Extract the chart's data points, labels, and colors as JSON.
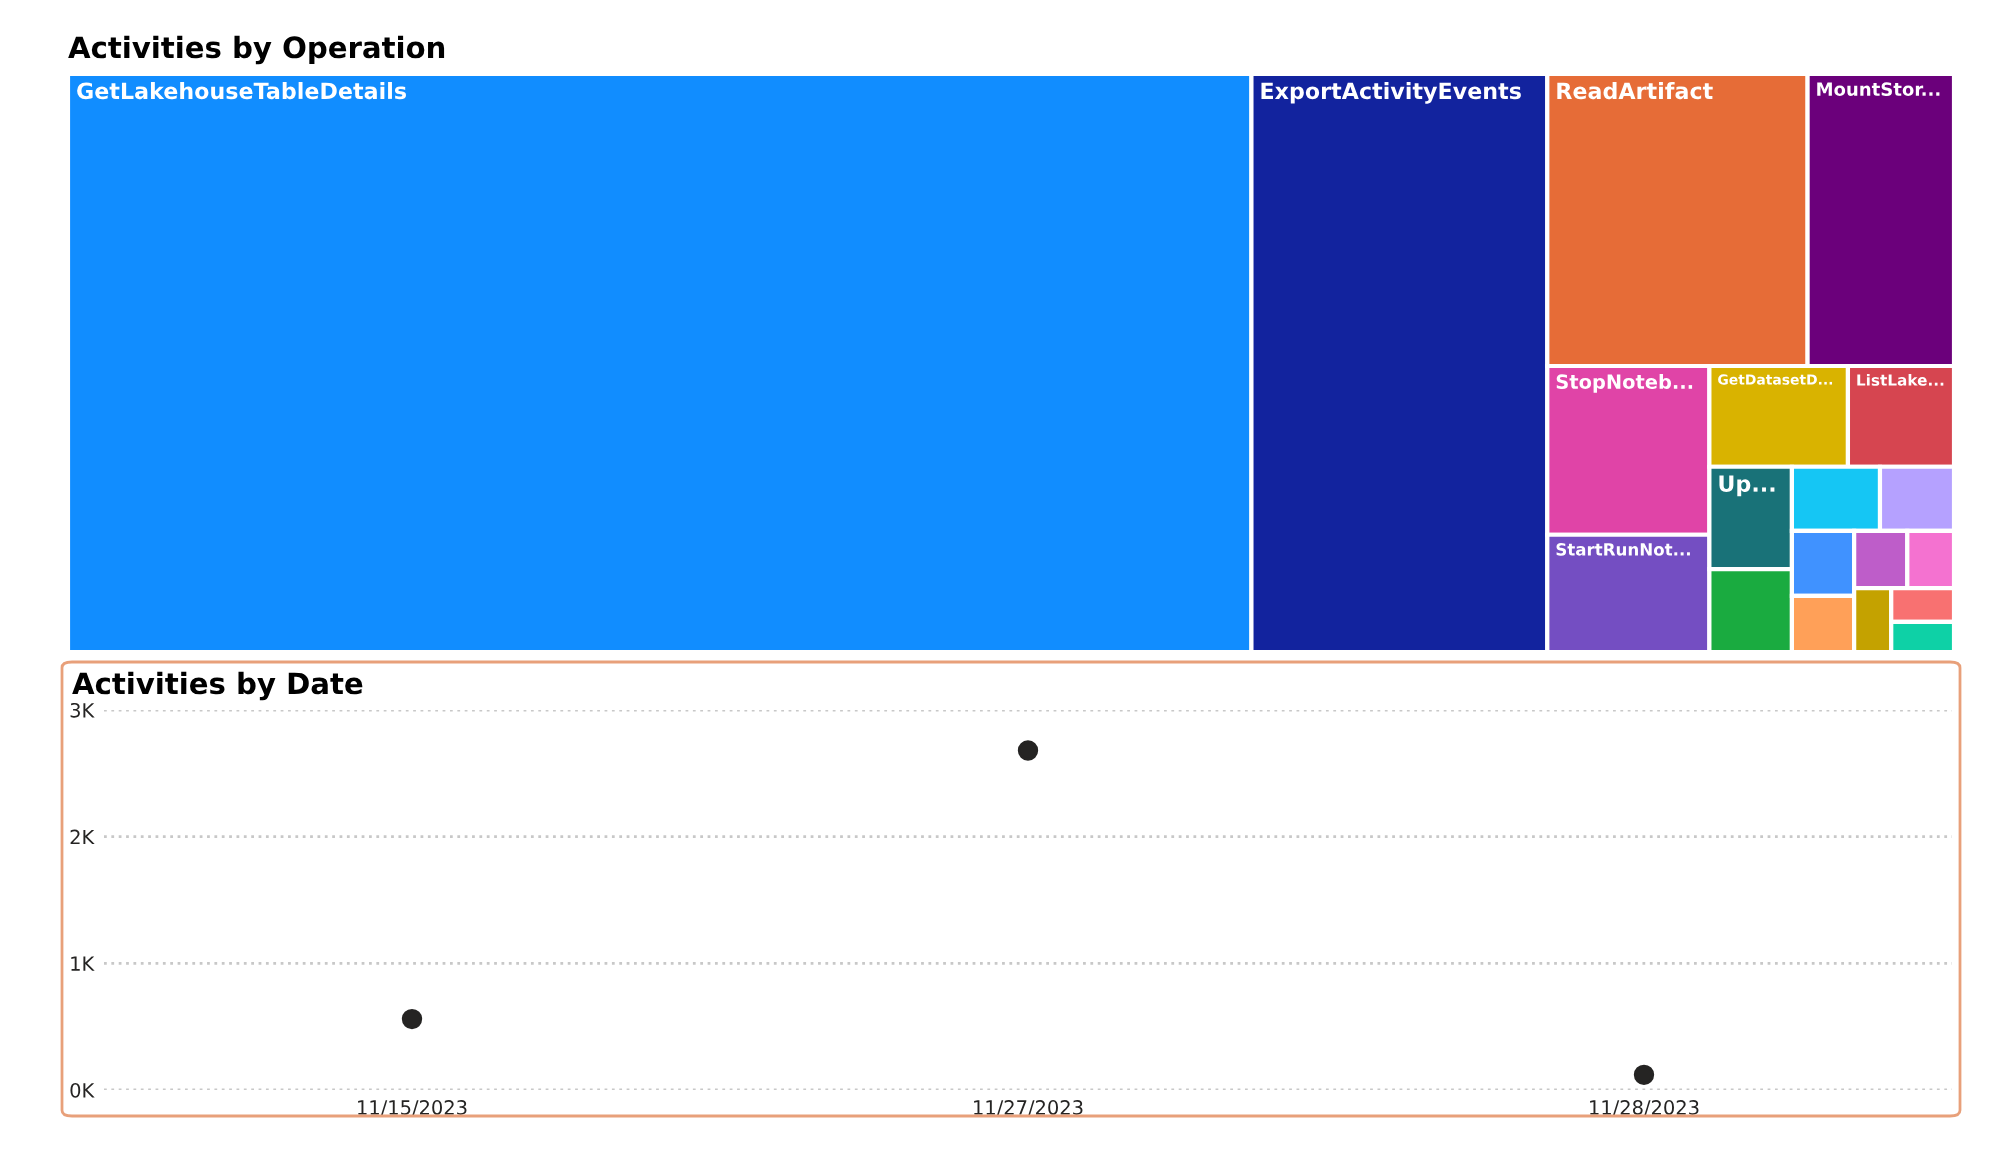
{
  "chart_data": [
    {
      "type": "other",
      "title": "Activities by Operation",
      "categories": [
        "GetLakehouseTableDetails",
        "ExportActivityEvents",
        "ReadArtifact",
        "MountStor...",
        "StopNoteb...",
        "StartRunNot...",
        "GetDatasetD...",
        "ListLake...",
        "Up...",
        null,
        null,
        null,
        null,
        null,
        null,
        null,
        null,
        null,
        null
      ],
      "colors": [
        "#118dff",
        "#12239e",
        "#e66c37",
        "#6b007b",
        "#e044a7",
        "#744ec2",
        "#d9b300",
        "#d64550",
        "#197278",
        "#1aab40",
        "#15c6f4",
        "#b5a1ff",
        "#4092ff",
        "#ffa058",
        "#be5dc9",
        "#f472d0",
        "#c4a200",
        "#f87171",
        "#0ed1a6"
      ]
    },
    {
      "type": "scatter",
      "title": "Activities by Date",
      "categories": [
        "11/15/2023",
        "11/27/2023",
        "11/28/2023"
      ],
      "series": [
        {
          "color": "#252423",
          "values": [
            560,
            2680,
            120
          ]
        }
      ],
      "ylim": [
        0,
        3000
      ],
      "yticks": [
        {
          "value": 0,
          "label": "0K"
        },
        {
          "value": 1000,
          "label": "1K"
        },
        {
          "value": 2000,
          "label": "2K"
        },
        {
          "value": 3000,
          "label": "3K"
        }
      ],
      "grid": "y",
      "marker": "circle",
      "legend": false
    }
  ]
}
